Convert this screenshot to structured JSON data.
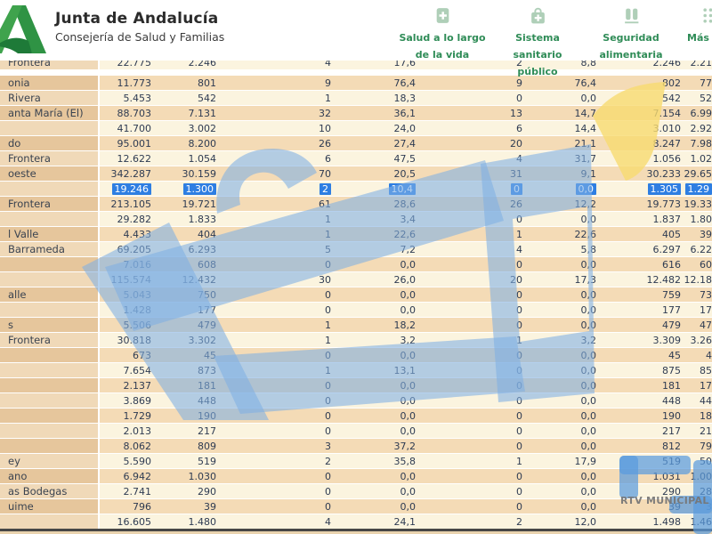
{
  "header": {
    "title": "Junta de Andalucía",
    "subtitle": "Consejería de Salud y Familias",
    "nav_items": [
      {
        "icon": "health-book-icon",
        "label": "Salud a lo largo\nde la vida"
      },
      {
        "icon": "medical-bag-icon",
        "label": "Sistema\nsanitario\npúblico"
      },
      {
        "icon": "food-safety-icon",
        "label": "Seguridad\nalimentaria"
      },
      {
        "icon": "more-topics-grid-icon",
        "label": "Más t"
      }
    ]
  },
  "colors": {
    "brand_green": "#2F8C57",
    "selection_blue": "#2E7EE2",
    "watermark_blue": "#7FB0E4",
    "watermark_yellow": "#F7DB70"
  },
  "watermark": {
    "caption": "RTV MUNICIPAL DE C"
  },
  "table": {
    "rows": [
      {
        "name": "Frontera",
        "cells": [
          "22.775",
          "2.246",
          "4",
          "17,6",
          "2",
          "8,8",
          "2.246",
          "2.21"
        ],
        "clipped_top": true
      },
      {
        "name": "onia",
        "cells": [
          "11.773",
          "801",
          "9",
          "76,4",
          "9",
          "76,4",
          "802",
          "77"
        ]
      },
      {
        "name": "Rivera",
        "cells": [
          "5.453",
          "542",
          "1",
          "18,3",
          "0",
          "0,0",
          "542",
          "52"
        ]
      },
      {
        "name": "anta María (El)",
        "cells": [
          "88.703",
          "7.131",
          "32",
          "36,1",
          "13",
          "14,7",
          "7.154",
          "6.99"
        ]
      },
      {
        "name": "",
        "cells": [
          "41.700",
          "3.002",
          "10",
          "24,0",
          "6",
          "14,4",
          "3.010",
          "2.92"
        ]
      },
      {
        "name": "do",
        "cells": [
          "95.001",
          "8.200",
          "26",
          "27,4",
          "20",
          "21,1",
          "8.247",
          "7.98"
        ]
      },
      {
        "name": "Frontera",
        "cells": [
          "12.622",
          "1.054",
          "6",
          "47,5",
          "4",
          "31,7",
          "1.056",
          "1.02"
        ]
      },
      {
        "name": "oeste",
        "cells": [
          "342.287",
          "30.159",
          "70",
          "20,5",
          "31",
          "9,1",
          "30.233",
          "29.65"
        ]
      },
      {
        "name": "",
        "cells": [
          "19.246",
          "1.300",
          "2",
          "10,4",
          "0",
          "0,0",
          "1.305",
          "1.29"
        ],
        "selected": true
      },
      {
        "name": "Frontera",
        "cells": [
          "213.105",
          "19.721",
          "61",
          "28,6",
          "26",
          "12,2",
          "19.773",
          "19.33"
        ]
      },
      {
        "name": "",
        "cells": [
          "29.282",
          "1.833",
          "1",
          "3,4",
          "0",
          "0,0",
          "1.837",
          "1.80"
        ]
      },
      {
        "name": "l Valle",
        "cells": [
          "4.433",
          "404",
          "1",
          "22,6",
          "1",
          "22,6",
          "405",
          "39"
        ]
      },
      {
        "name": "Barrameda",
        "cells": [
          "69.205",
          "6.293",
          "5",
          "7,2",
          "4",
          "5,8",
          "6.297",
          "6.22"
        ]
      },
      {
        "name": "",
        "cells": [
          "7.016",
          "608",
          "0",
          "0,0",
          "0",
          "0,0",
          "616",
          "60"
        ]
      },
      {
        "name": "",
        "cells": [
          "115.574",
          "12.432",
          "30",
          "26,0",
          "20",
          "17,3",
          "12.482",
          "12.18"
        ]
      },
      {
        "name": "alle",
        "cells": [
          "5.043",
          "750",
          "0",
          "0,0",
          "0",
          "0,0",
          "759",
          "73"
        ]
      },
      {
        "name": "",
        "cells": [
          "1.428",
          "177",
          "0",
          "0,0",
          "0",
          "0,0",
          "177",
          "17"
        ]
      },
      {
        "name": "s",
        "cells": [
          "5.506",
          "479",
          "1",
          "18,2",
          "0",
          "0,0",
          "479",
          "47"
        ]
      },
      {
        "name": "Frontera",
        "cells": [
          "30.818",
          "3.302",
          "1",
          "3,2",
          "1",
          "3,2",
          "3.309",
          "3.26"
        ]
      },
      {
        "name": "",
        "cells": [
          "673",
          "45",
          "0",
          "0,0",
          "0",
          "0,0",
          "45",
          "4"
        ]
      },
      {
        "name": "",
        "cells": [
          "7.654",
          "873",
          "1",
          "13,1",
          "0",
          "0,0",
          "875",
          "85"
        ]
      },
      {
        "name": "",
        "cells": [
          "2.137",
          "181",
          "0",
          "0,0",
          "0",
          "0,0",
          "181",
          "17"
        ]
      },
      {
        "name": "",
        "cells": [
          "3.869",
          "448",
          "0",
          "0,0",
          "0",
          "0,0",
          "448",
          "44"
        ]
      },
      {
        "name": "",
        "cells": [
          "1.729",
          "190",
          "0",
          "0,0",
          "0",
          "0,0",
          "190",
          "18"
        ]
      },
      {
        "name": "",
        "cells": [
          "2.013",
          "217",
          "0",
          "0,0",
          "0",
          "0,0",
          "217",
          "21"
        ]
      },
      {
        "name": "",
        "cells": [
          "8.062",
          "809",
          "3",
          "37,2",
          "0",
          "0,0",
          "812",
          "79"
        ]
      },
      {
        "name": "ey",
        "cells": [
          "5.590",
          "519",
          "2",
          "35,8",
          "1",
          "17,9",
          "519",
          "50"
        ]
      },
      {
        "name": "ano",
        "cells": [
          "6.942",
          "1.030",
          "0",
          "0,0",
          "0",
          "0,0",
          "1.031",
          "1.00"
        ]
      },
      {
        "name": "as Bodegas",
        "cells": [
          "2.741",
          "290",
          "0",
          "0,0",
          "0",
          "0,0",
          "290",
          "28"
        ]
      },
      {
        "name": "uime",
        "cells": [
          "796",
          "39",
          "0",
          "0,0",
          "0",
          "0,0",
          "39",
          "3"
        ]
      },
      {
        "name": "",
        "cells": [
          "16.605",
          "1.480",
          "4",
          "24,1",
          "2",
          "12,0",
          "1.498",
          "1.46"
        ]
      }
    ]
  }
}
